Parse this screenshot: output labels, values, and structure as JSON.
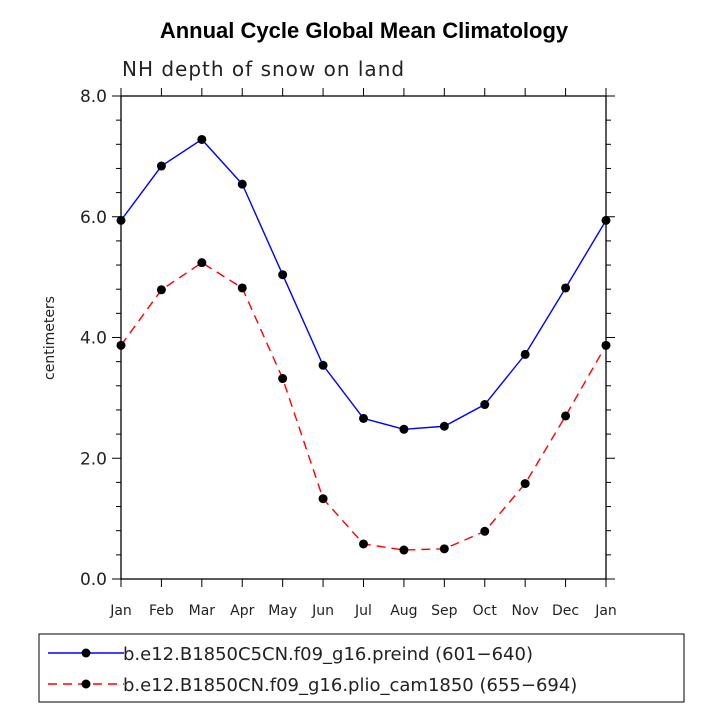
{
  "chart_data": {
    "type": "line",
    "title": "Annual Cycle Global Mean Climatology",
    "subtitle": "NH depth of snow on land",
    "xlabel": "",
    "ylabel": "centimeters",
    "categories": [
      "Jan",
      "Feb",
      "Mar",
      "Apr",
      "May",
      "Jun",
      "Jul",
      "Aug",
      "Sep",
      "Oct",
      "Nov",
      "Dec",
      "Jan"
    ],
    "ylim": [
      0,
      8
    ],
    "yticks": [
      "0.0",
      "2.0",
      "4.0",
      "6.0",
      "8.0"
    ],
    "series": [
      {
        "name": "b.e12.B1850C5CN.f09_g16.preind (601−640)",
        "color": "#0000ff",
        "dash": "solid",
        "values": [
          5.94,
          6.84,
          7.28,
          6.54,
          5.04,
          3.54,
          2.66,
          2.48,
          2.53,
          2.89,
          3.72,
          4.82,
          5.94
        ]
      },
      {
        "name": "b.e12.B1850CN.f09_g16.plio_cam1850 (655−694)",
        "color": "#ff0000",
        "dash": "dashed",
        "values": [
          3.87,
          4.79,
          5.24,
          4.82,
          3.32,
          1.33,
          0.58,
          0.48,
          0.5,
          0.79,
          1.58,
          2.7,
          3.87
        ]
      }
    ]
  }
}
